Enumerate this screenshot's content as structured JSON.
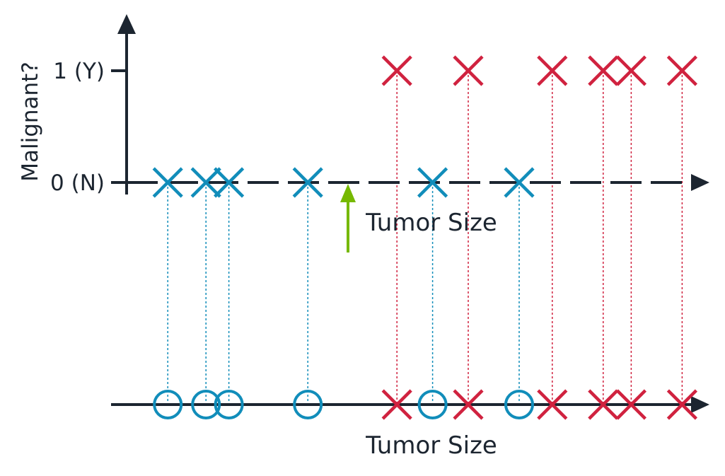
{
  "chart_data": {
    "type": "scatter",
    "title": "",
    "ylabel": "Malignant?",
    "xlabel": "Tumor Size",
    "bottom_xlabel": "Tumor Size",
    "yticks": [
      {
        "value": 0,
        "label": "0 (N)"
      },
      {
        "value": 1,
        "label": "1 (Y)"
      }
    ],
    "ylim": [
      0,
      1
    ],
    "threshold": 4.85,
    "series": [
      {
        "label": 0,
        "x": [
          1.1,
          1.85,
          2.3,
          3.85,
          6.3,
          8.0
        ]
      },
      {
        "label": 1,
        "x": [
          5.6,
          7.0,
          8.65,
          9.65,
          10.2,
          11.2
        ]
      }
    ],
    "colors": {
      "benign": "#118dba",
      "malignant": "#d0223f",
      "threshold": "#76b900",
      "axis": "#1c2530"
    },
    "legend": "none",
    "grid": false
  }
}
